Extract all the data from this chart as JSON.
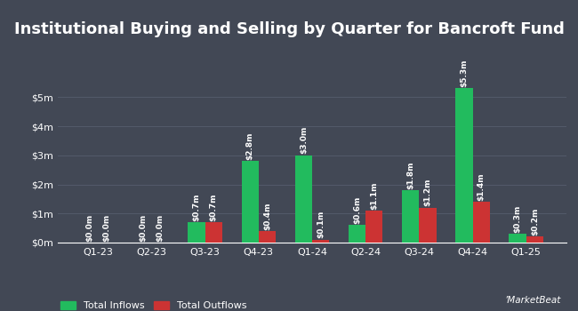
{
  "title": "Institutional Buying and Selling by Quarter for Bancroft Fund",
  "quarters": [
    "Q1-23",
    "Q2-23",
    "Q3-23",
    "Q4-23",
    "Q1-24",
    "Q2-24",
    "Q3-24",
    "Q4-24",
    "Q1-25"
  ],
  "inflows": [
    0.0,
    0.0,
    0.7,
    2.8,
    3.0,
    0.6,
    1.8,
    5.3,
    0.3
  ],
  "outflows": [
    0.0,
    0.0,
    0.7,
    0.4,
    0.1,
    1.1,
    1.2,
    1.4,
    0.2
  ],
  "inflow_labels": [
    "$0.0m",
    "$0.0m",
    "$0.7m",
    "$2.8m",
    "$3.0m",
    "$0.6m",
    "$1.8m",
    "$5.3m",
    "$0.3m"
  ],
  "outflow_labels": [
    "$0.0m",
    "$0.0m",
    "$0.7m",
    "$0.4m",
    "$0.1m",
    "$1.1m",
    "$1.2m",
    "$1.4m",
    "$0.2m"
  ],
  "inflow_color": "#22bb5e",
  "outflow_color": "#cc3333",
  "background_color": "#424855",
  "text_color": "#ffffff",
  "grid_color": "#535a6a",
  "yticks": [
    0,
    1,
    2,
    3,
    4,
    5
  ],
  "ytick_labels": [
    "$0m",
    "$1m",
    "$2m",
    "$3m",
    "$4m",
    "$5m"
  ],
  "ylim": [
    0,
    6.2
  ],
  "legend_inflow": "Total Inflows",
  "legend_outflow": "Total Outflows",
  "bar_width": 0.32,
  "title_fontsize": 13,
  "label_fontsize": 6.5,
  "tick_fontsize": 8,
  "legend_fontsize": 8
}
